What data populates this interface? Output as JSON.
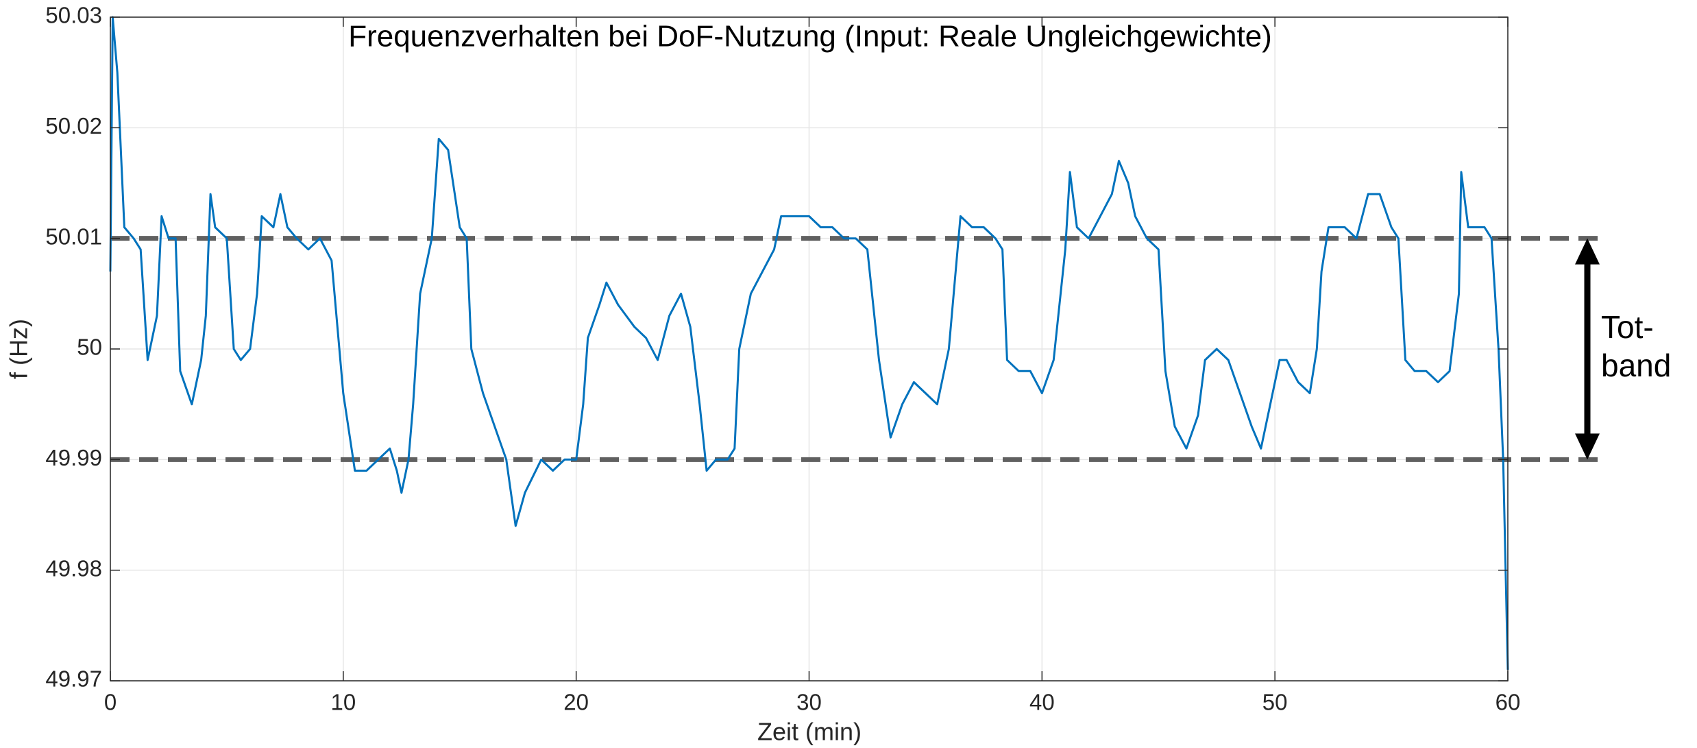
{
  "chart_data": {
    "type": "line",
    "title": "Frequenzverhalten bei DoF-Nutzung (Input: Reale Ungleichgewichte)",
    "x_label": "Zeit (min)",
    "y_label": "f (Hz)",
    "xlim": [
      0,
      60
    ],
    "ylim": [
      49.97,
      50.03
    ],
    "xticks": [
      0,
      10,
      20,
      30,
      40,
      50,
      60
    ],
    "yticks": [
      49.97,
      49.98,
      49.99,
      50,
      50.01,
      50.02,
      50.03
    ],
    "grid": true,
    "reference_lines": [
      50.01,
      49.99
    ],
    "reference_color": "#606060",
    "annotation": [
      "Tot-",
      "band"
    ],
    "x": [
      0,
      0.1,
      0.3,
      0.6,
      1.0,
      1.3,
      1.6,
      2.0,
      2.2,
      2.5,
      2.8,
      3.0,
      3.5,
      3.9,
      4.1,
      4.3,
      4.5,
      5.0,
      5.3,
      5.6,
      6.0,
      6.3,
      6.5,
      7.0,
      7.3,
      7.6,
      8.0,
      8.5,
      9.0,
      9.5,
      10.0,
      10.5,
      11.0,
      11.5,
      12.0,
      12.3,
      12.5,
      12.8,
      13.0,
      13.3,
      13.8,
      14.1,
      14.5,
      15.0,
      15.3,
      15.5,
      16.0,
      16.5,
      17.0,
      17.4,
      17.8,
      18.5,
      19.0,
      19.5,
      20.0,
      20.3,
      20.5,
      21.0,
      21.3,
      21.8,
      22.5,
      23.0,
      23.5,
      24.0,
      24.5,
      24.9,
      25.3,
      25.6,
      26.0,
      26.5,
      26.8,
      27.0,
      27.5,
      28.0,
      28.5,
      28.8,
      29.5,
      30.0,
      30.5,
      31.0,
      31.5,
      32.0,
      32.5,
      33.0,
      33.5,
      34.0,
      34.5,
      35.0,
      35.5,
      36.0,
      36.5,
      37.0,
      37.5,
      38.0,
      38.3,
      38.5,
      39.0,
      39.5,
      40.0,
      40.5,
      41.0,
      41.2,
      41.5,
      42.0,
      42.5,
      43.0,
      43.3,
      43.7,
      44.0,
      44.5,
      45.0,
      45.3,
      45.7,
      46.2,
      46.7,
      47.0,
      47.5,
      48.0,
      48.5,
      49.0,
      49.4,
      49.8,
      50.2,
      50.5,
      51.0,
      51.5,
      51.8,
      52.0,
      52.3,
      53.0,
      53.5,
      54.0,
      54.5,
      55.0,
      55.3,
      55.6,
      56.0,
      56.5,
      57.0,
      57.5,
      57.9,
      58.0,
      58.3,
      59.0,
      59.3,
      59.6,
      59.8,
      60.0
    ],
    "series": [
      {
        "color": "#0072bd",
        "values": [
          50.007,
          50.03,
          50.025,
          50.011,
          50.01,
          50.009,
          49.999,
          50.003,
          50.012,
          50.01,
          50.01,
          49.998,
          49.995,
          49.999,
          50.003,
          50.014,
          50.011,
          50.01,
          50.0,
          49.999,
          50.0,
          50.005,
          50.012,
          50.011,
          50.014,
          50.011,
          50.01,
          50.009,
          50.01,
          50.008,
          49.996,
          49.989,
          49.989,
          49.99,
          49.991,
          49.989,
          49.987,
          49.99,
          49.995,
          50.005,
          50.01,
          50.019,
          50.018,
          50.011,
          50.01,
          50.0,
          49.996,
          49.993,
          49.99,
          49.984,
          49.987,
          49.99,
          49.989,
          49.99,
          49.99,
          49.995,
          50.001,
          50.004,
          50.006,
          50.004,
          50.002,
          50.001,
          49.999,
          50.003,
          50.005,
          50.002,
          49.995,
          49.989,
          49.99,
          49.99,
          49.991,
          50.0,
          50.005,
          50.007,
          50.009,
          50.012,
          50.012,
          50.012,
          50.011,
          50.011,
          50.01,
          50.01,
          50.009,
          49.999,
          49.992,
          49.995,
          49.997,
          49.996,
          49.995,
          50.0,
          50.012,
          50.011,
          50.011,
          50.01,
          50.009,
          49.999,
          49.998,
          49.998,
          49.996,
          49.999,
          50.009,
          50.016,
          50.011,
          50.01,
          50.012,
          50.014,
          50.017,
          50.015,
          50.012,
          50.01,
          50.009,
          49.998,
          49.993,
          49.991,
          49.994,
          49.999,
          50.0,
          49.999,
          49.996,
          49.993,
          49.991,
          49.995,
          49.999,
          49.999,
          49.997,
          49.996,
          50.0,
          50.007,
          50.011,
          50.011,
          50.01,
          50.014,
          50.014,
          50.011,
          50.01,
          49.999,
          49.998,
          49.998,
          49.997,
          49.998,
          50.005,
          50.016,
          50.011,
          50.011,
          50.01,
          50.0,
          49.99,
          49.971
        ]
      }
    ]
  }
}
